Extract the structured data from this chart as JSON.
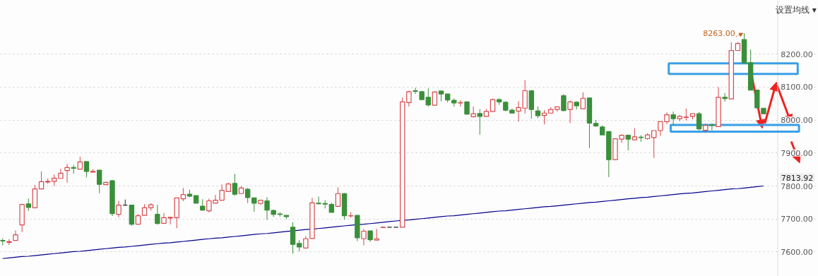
{
  "chart_data": {
    "type": "candlestick",
    "categories": [
      null,
      null,
      null,
      null,
      null,
      null,
      null,
      null,
      null,
      null,
      null,
      null,
      null,
      null,
      null,
      null,
      null,
      null,
      null,
      null,
      null,
      null,
      null,
      null,
      null,
      null,
      null,
      null,
      null,
      null,
      null,
      null,
      null,
      null,
      null,
      null,
      null,
      null,
      null,
      null,
      null,
      null,
      null,
      null,
      null,
      null,
      null,
      null,
      null,
      null,
      null,
      null,
      null,
      null,
      null,
      null,
      null,
      null,
      null,
      null,
      null,
      null,
      null,
      null,
      null,
      null,
      null,
      null,
      null,
      null,
      null,
      null,
      null,
      null,
      null,
      null,
      null,
      null,
      null,
      null,
      null,
      null,
      null,
      null,
      null,
      null,
      null,
      null,
      null,
      null,
      null,
      null,
      null,
      null,
      null,
      null,
      null,
      null,
      null,
      null,
      null,
      null,
      null,
      null,
      null,
      null,
      null,
      null,
      null,
      null,
      null,
      null,
      null,
      null,
      null,
      null,
      null,
      null,
      null
    ],
    "ohlc": [
      [
        7635,
        7641,
        7620,
        7633
      ],
      [
        7629,
        7639,
        7621,
        7631
      ],
      [
        7635,
        7665,
        7635,
        7652
      ],
      [
        7682,
        7746,
        7660,
        7744
      ],
      [
        7746,
        7762,
        7724,
        7735
      ],
      [
        7734,
        7803,
        7734,
        7791
      ],
      [
        7791,
        7844,
        7791,
        7813
      ],
      [
        7812,
        7823,
        7807,
        7814
      ],
      [
        7814,
        7835,
        7800,
        7824
      ],
      [
        7823,
        7852,
        7823,
        7839
      ],
      [
        7847,
        7867,
        7810,
        7856
      ],
      [
        7856,
        7864,
        7837,
        7854
      ],
      [
        7851,
        7889,
        7851,
        7873
      ],
      [
        7874,
        7874,
        7826,
        7844
      ],
      [
        7842,
        7851,
        7840,
        7845
      ],
      [
        7848,
        7848,
        7778,
        7805
      ],
      [
        7804,
        7813,
        7804,
        7811
      ],
      [
        7816,
        7819,
        7709,
        7716
      ],
      [
        7714,
        7755,
        7705,
        7742
      ],
      [
        7742,
        7759,
        7742,
        7742
      ],
      [
        7742,
        7742,
        7679,
        7684
      ],
      [
        7684,
        7715,
        7684,
        7710
      ],
      [
        7711,
        7745,
        7711,
        7734
      ],
      [
        7734,
        7748,
        7725,
        7743
      ],
      [
        7714,
        7743,
        7683,
        7686
      ],
      [
        7687,
        7718,
        7687,
        7704
      ],
      [
        7703,
        7706,
        7684,
        7705
      ],
      [
        7704,
        7764,
        7672,
        7764
      ],
      [
        7761,
        7794,
        7754,
        7774
      ],
      [
        7775,
        7789,
        7766,
        7769
      ],
      [
        7771,
        7771,
        7748,
        7748
      ],
      [
        7739,
        7760,
        7725,
        7727
      ],
      [
        7725,
        7762,
        7720,
        7755
      ],
      [
        7748,
        7773,
        7748,
        7757
      ],
      [
        7757,
        7805,
        7757,
        7787
      ],
      [
        7783,
        7810,
        7783,
        7806
      ],
      [
        7808,
        7837,
        7770,
        7775
      ],
      [
        7777,
        7800,
        7777,
        7794
      ],
      [
        7790,
        7794,
        7748,
        7765
      ],
      [
        7764,
        7764,
        7722,
        7748
      ],
      [
        7747,
        7757,
        7743,
        7757
      ],
      [
        7755,
        7766,
        7697,
        7727
      ],
      [
        7726,
        7728,
        7706,
        7714
      ],
      [
        7715,
        7720,
        7707,
        7714
      ],
      [
        7711,
        7711,
        7700,
        7707
      ],
      [
        7675,
        7690,
        7595,
        7623
      ],
      [
        7626,
        7636,
        7602,
        7615
      ],
      [
        7612,
        7648,
        7612,
        7640
      ],
      [
        7641,
        7764,
        7641,
        7749
      ],
      [
        7748,
        7768,
        7744,
        7746
      ],
      [
        7747,
        7757,
        7732,
        7745
      ],
      [
        7744,
        7749,
        7720,
        7720
      ],
      [
        7738,
        7796,
        7738,
        7777
      ],
      [
        7777,
        7779,
        7698,
        7710
      ],
      [
        7709,
        7721,
        7704,
        7710
      ],
      [
        7711,
        7711,
        7633,
        7643
      ],
      [
        7640,
        7670,
        7620,
        7663
      ],
      [
        7664,
        7664,
        7631,
        7637
      ],
      [
        7636,
        7670,
        7636,
        7640
      ],
      [
        7674,
        7675,
        7674,
        7675
      ],
      [
        7675,
        7675,
        7675,
        7675
      ],
      [
        7675,
        7675,
        7675,
        7675
      ],
      [
        7675,
        8068,
        7675,
        8055
      ],
      [
        8053,
        8089,
        8041,
        8086
      ],
      [
        8089,
        8098,
        8079,
        8087
      ],
      [
        8086,
        8089,
        8061,
        8062
      ],
      [
        8069,
        8096,
        8041,
        8046
      ],
      [
        8045,
        8087,
        8045,
        8085
      ],
      [
        8088,
        8088,
        8057,
        8079
      ],
      [
        8079,
        8079,
        8054,
        8061
      ],
      [
        8060,
        8065,
        8041,
        8052
      ],
      [
        8052,
        8060,
        8041,
        8053
      ],
      [
        8055,
        8057,
        8016,
        8018
      ],
      [
        8010,
        8041,
        8008,
        8019
      ],
      [
        8020,
        8033,
        7956,
        8011
      ],
      [
        8011,
        8033,
        8011,
        8026
      ],
      [
        8026,
        8065,
        8026,
        8062
      ],
      [
        8062,
        8066,
        8046,
        8055
      ],
      [
        8054,
        8057,
        8026,
        8030
      ],
      [
        8030,
        8035,
        8021,
        8021
      ],
      [
        8027,
        8057,
        7995,
        8038
      ],
      [
        8036,
        8121,
        8020,
        8089
      ],
      [
        8089,
        8089,
        8004,
        8032
      ],
      [
        8028,
        8041,
        8006,
        8013
      ],
      [
        8014,
        8030,
        7987,
        8021
      ],
      [
        8021,
        8039,
        8020,
        8032
      ],
      [
        8032,
        8040,
        8026,
        8040
      ],
      [
        8074,
        8079,
        8027,
        8029
      ],
      [
        8032,
        8059,
        7991,
        8055
      ],
      [
        8054,
        8057,
        8032,
        8043
      ],
      [
        8034,
        8084,
        8034,
        8066
      ],
      [
        8067,
        8068,
        7915,
        7991
      ],
      [
        7990,
        8000,
        7979,
        7982
      ],
      [
        7979,
        7984,
        7955,
        7955
      ],
      [
        7965,
        7965,
        7827,
        7880
      ],
      [
        7880,
        7945,
        7878,
        7943
      ],
      [
        7942,
        7957,
        7931,
        7954
      ],
      [
        7954,
        7956,
        7908,
        7942
      ],
      [
        7940,
        7975,
        7940,
        7949
      ],
      [
        7948,
        7954,
        7934,
        7947
      ],
      [
        7944,
        7960,
        7940,
        7955
      ],
      [
        7947,
        7968,
        7885,
        7968
      ],
      [
        7968,
        7995,
        7952,
        7995
      ],
      [
        7995,
        8023,
        7988,
        8016
      ],
      [
        8016,
        8026,
        7984,
        8004
      ],
      [
        8004,
        8016,
        7997,
        8011
      ],
      [
        8008,
        8035,
        7999,
        8009
      ],
      [
        8011,
        8019,
        8002,
        8019
      ],
      [
        8019,
        8024,
        7969,
        7973
      ],
      [
        7969,
        7989,
        7962,
        7984
      ],
      [
        7986,
        7989,
        7969,
        7984
      ],
      [
        7980,
        8100,
        7980,
        8069
      ],
      [
        8069,
        8082,
        8056,
        8065
      ],
      [
        8064,
        8236,
        8064,
        8211
      ],
      [
        8211,
        8237,
        8211,
        8232
      ],
      [
        8244,
        8263,
        8173,
        8173
      ],
      [
        8174,
        8214,
        8091,
        8091
      ],
      [
        8091,
        8092,
        8037,
        8037
      ],
      [
        8036,
        8036,
        8019,
        8019
      ]
    ],
    "series": [
      {
        "type": "line",
        "color": "#00008b",
        "values": [
          7580,
          7582,
          7584,
          7586,
          7587,
          7589,
          7591,
          7593,
          7595,
          7597,
          7599,
          7601,
          7602,
          7604,
          7606,
          7608,
          7610,
          7612,
          7614,
          7615,
          7617,
          7619,
          7621,
          7623,
          7625,
          7627,
          7628,
          7630,
          7632,
          7634,
          7636,
          7638,
          7640,
          7642,
          7643,
          7645,
          7647,
          7649,
          7651,
          7653,
          7655,
          7656,
          7658,
          7660,
          7662,
          7664,
          7666,
          7668,
          7669,
          7671,
          7673,
          7675,
          7677,
          7679,
          7681,
          7683,
          7684,
          7686,
          7688,
          7690,
          7692,
          7694,
          7696,
          7697,
          7699,
          7701,
          7703,
          7705,
          7707,
          7709,
          7710,
          7712,
          7714,
          7716,
          7718,
          7720,
          7722,
          7724,
          7725,
          7727,
          7729,
          7731,
          7733,
          7735,
          7737,
          7738,
          7740,
          7742,
          7744,
          7746,
          7748,
          7750,
          7751,
          7753,
          7755,
          7757,
          7759,
          7761,
          7763,
          7765,
          7766,
          7768,
          7770,
          7772,
          7774,
          7776,
          7778,
          7779,
          7781,
          7783,
          7785,
          7787,
          7789,
          7791,
          7792,
          7794,
          7796,
          7798,
          7800
        ]
      }
    ],
    "ylim": [
      7526,
      8363
    ],
    "yticks": [
      {
        "value": 7600,
        "label": "7600.00"
      },
      {
        "value": 7700,
        "label": "7700.00"
      },
      {
        "value": 7800,
        "label": "7800.00"
      },
      {
        "value": 7900,
        "label": "7900.00"
      },
      {
        "value": 8000,
        "label": "8000.00"
      },
      {
        "value": 8100,
        "label": "8100.00"
      },
      {
        "value": 8200,
        "label": "8200.00"
      }
    ],
    "annotations": [
      "设置均线 ▾",
      "8263.00",
      "7813.92"
    ],
    "grid": "y",
    "tick_labels": "y"
  }
}
